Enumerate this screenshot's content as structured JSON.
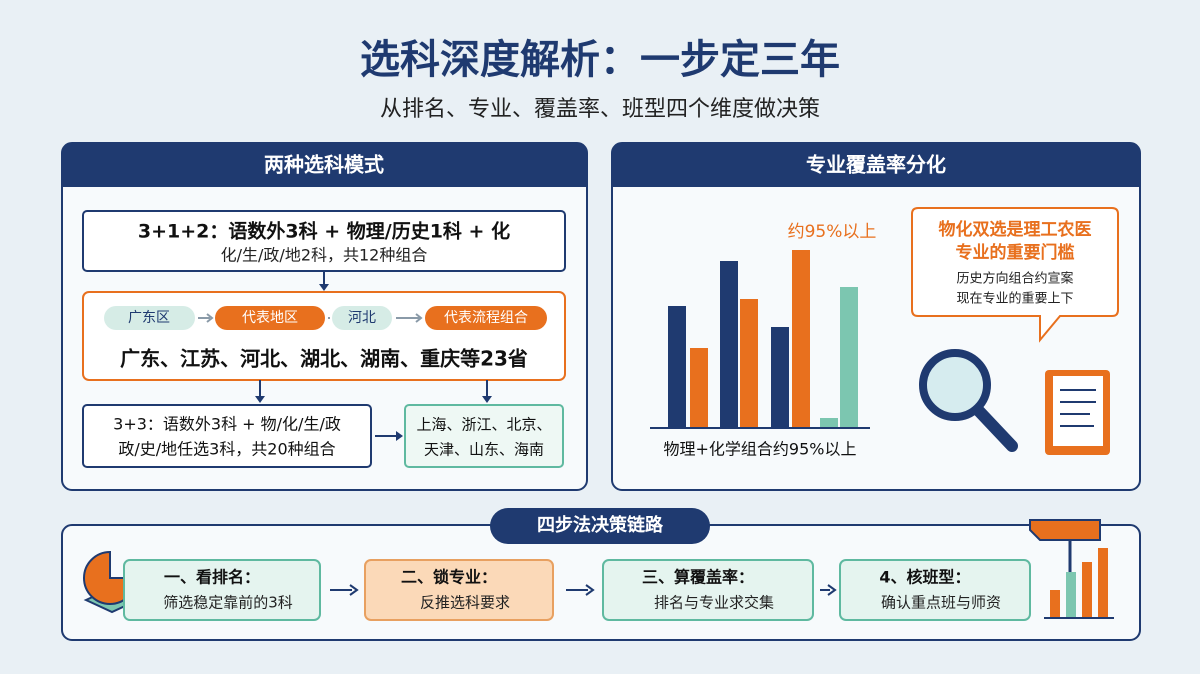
{
  "header": {
    "title": "选科深度解析：一步定三年",
    "subtitle": "从排名、专业、覆盖率、班型四个维度做决策"
  },
  "left_panel": {
    "title": "两种选科模式",
    "mode_a": {
      "line1": "3+1+2：语数外3科 + 物理/历史1科 + 化",
      "line2": "化/生/政/地2科，共12种组合"
    },
    "chips": [
      "广东区",
      "代表地区",
      "河北",
      "代表流程组合"
    ],
    "provinces": "广东、江苏、河北、湖北、湖南、重庆等23省",
    "mode_b": {
      "line1": "3+3：语数外3科 + 物/化/生/政",
      "line2": "政/史/地任选3科，共20种组合"
    },
    "regions": {
      "line1": "上海、浙江、北京、",
      "line2": "天津、山东、海南"
    }
  },
  "right_panel": {
    "title": "专业覆盖率分化",
    "annotation": "约95%以上",
    "caption": "物理+化学组合约95%以上",
    "callout": {
      "line1": "物化双选是理工农医",
      "line2": "专业的重要门槛",
      "line3": "历史方向组合约宣案",
      "line4": "现在专业的重要上下"
    }
  },
  "bottom_panel": {
    "title": "四步法决策链路",
    "steps": [
      {
        "title": "一、看排名：",
        "text": "筛选稳定靠前的3科"
      },
      {
        "title": "二、锁专业：",
        "text": "反推选科要求"
      },
      {
        "title": "三、算覆盖率：",
        "text": "排名与专业求交集"
      },
      {
        "title": "4、核班型：",
        "text": "确认重点班与师资"
      }
    ]
  }
}
